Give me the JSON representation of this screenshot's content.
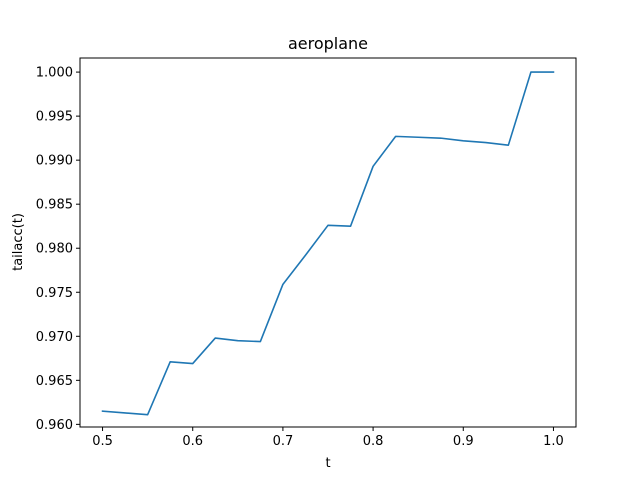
{
  "chart_data": {
    "type": "line",
    "title": "aeroplane",
    "xlabel": "t",
    "ylabel": "tailacc(t)",
    "xlim": [
      0.475,
      1.025
    ],
    "ylim": [
      0.9597,
      1.0016
    ],
    "xticks": [
      0.5,
      0.6,
      0.7,
      0.8,
      0.9,
      1.0
    ],
    "xtick_labels": [
      "0.5",
      "0.6",
      "0.7",
      "0.8",
      "0.9",
      "1.0"
    ],
    "yticks": [
      0.96,
      0.965,
      0.97,
      0.975,
      0.98,
      0.985,
      0.99,
      0.995,
      1.0
    ],
    "ytick_labels": [
      "0.960",
      "0.965",
      "0.970",
      "0.975",
      "0.980",
      "0.985",
      "0.990",
      "0.995",
      "1.000"
    ],
    "grid": false,
    "series": [
      {
        "color": "#1f77b4",
        "x": [
          0.5,
          0.525,
          0.55,
          0.575,
          0.6,
          0.625,
          0.65,
          0.675,
          0.7,
          0.725,
          0.75,
          0.775,
          0.8,
          0.825,
          0.85,
          0.875,
          0.9,
          0.925,
          0.95,
          0.975,
          1.0
        ],
        "y": [
          0.9615,
          0.9613,
          0.9611,
          0.9671,
          0.9669,
          0.9698,
          0.9695,
          0.9694,
          0.9759,
          0.9792,
          0.9826,
          0.9825,
          0.9893,
          0.9927,
          0.9926,
          0.9925,
          0.9922,
          0.992,
          0.9917,
          1.0,
          1.0
        ]
      }
    ]
  }
}
